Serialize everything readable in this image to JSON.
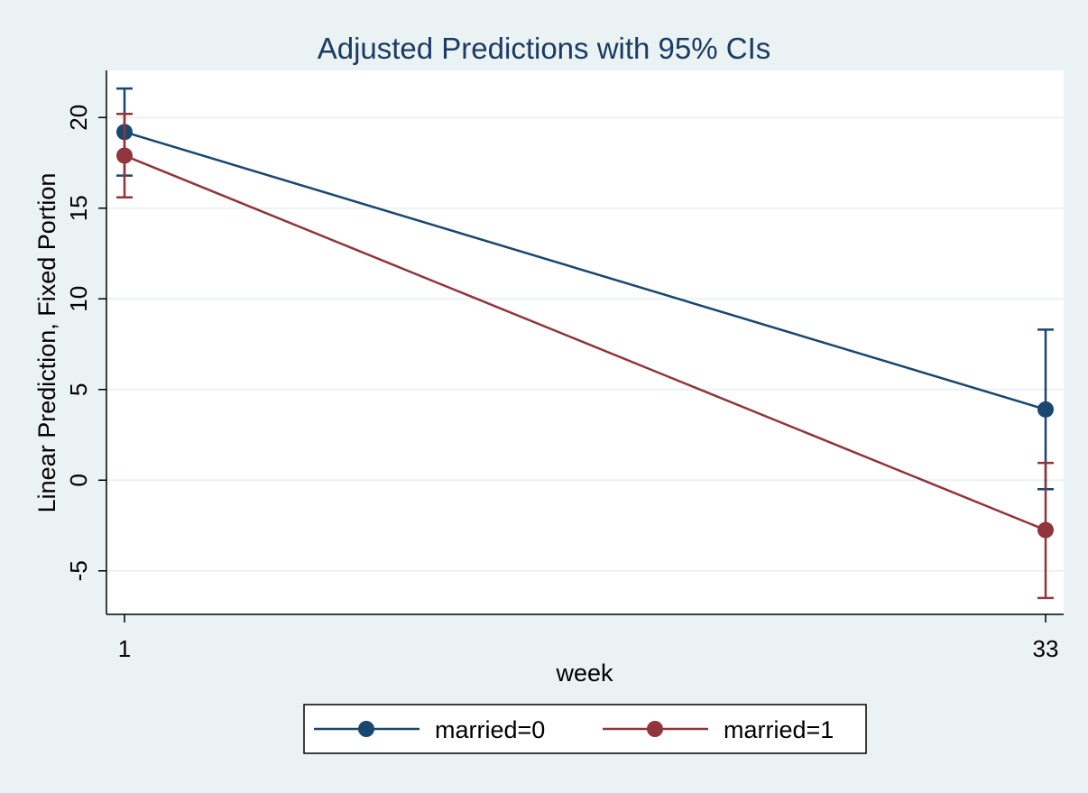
{
  "chart_data": {
    "type": "line",
    "title": "Adjusted Predictions with 95% CIs",
    "xlabel": "week",
    "ylabel": "Linear Prediction, Fixed Portion",
    "x": [
      1,
      33
    ],
    "x_ticks": [
      "1",
      "33"
    ],
    "y_ticks": [
      -5,
      0,
      5,
      10,
      15,
      20
    ],
    "ylim": [
      -7.4,
      22.6
    ],
    "grid": true,
    "legend_position": "bottom",
    "series": [
      {
        "name": "married=0",
        "color": "#1a476f",
        "values": [
          19.2,
          3.9
        ],
        "ci_low": [
          16.8,
          -0.5
        ],
        "ci_high": [
          21.6,
          8.3
        ]
      },
      {
        "name": "married=1",
        "color": "#90353b",
        "values": [
          17.9,
          -2.75
        ],
        "ci_low": [
          15.6,
          -6.5
        ],
        "ci_high": [
          20.2,
          0.95
        ]
      }
    ]
  },
  "colors": {
    "background": "#eaf2f3",
    "plot_area": "#ffffff",
    "grid": "#eaf2f3",
    "title": "#1a3b63"
  }
}
